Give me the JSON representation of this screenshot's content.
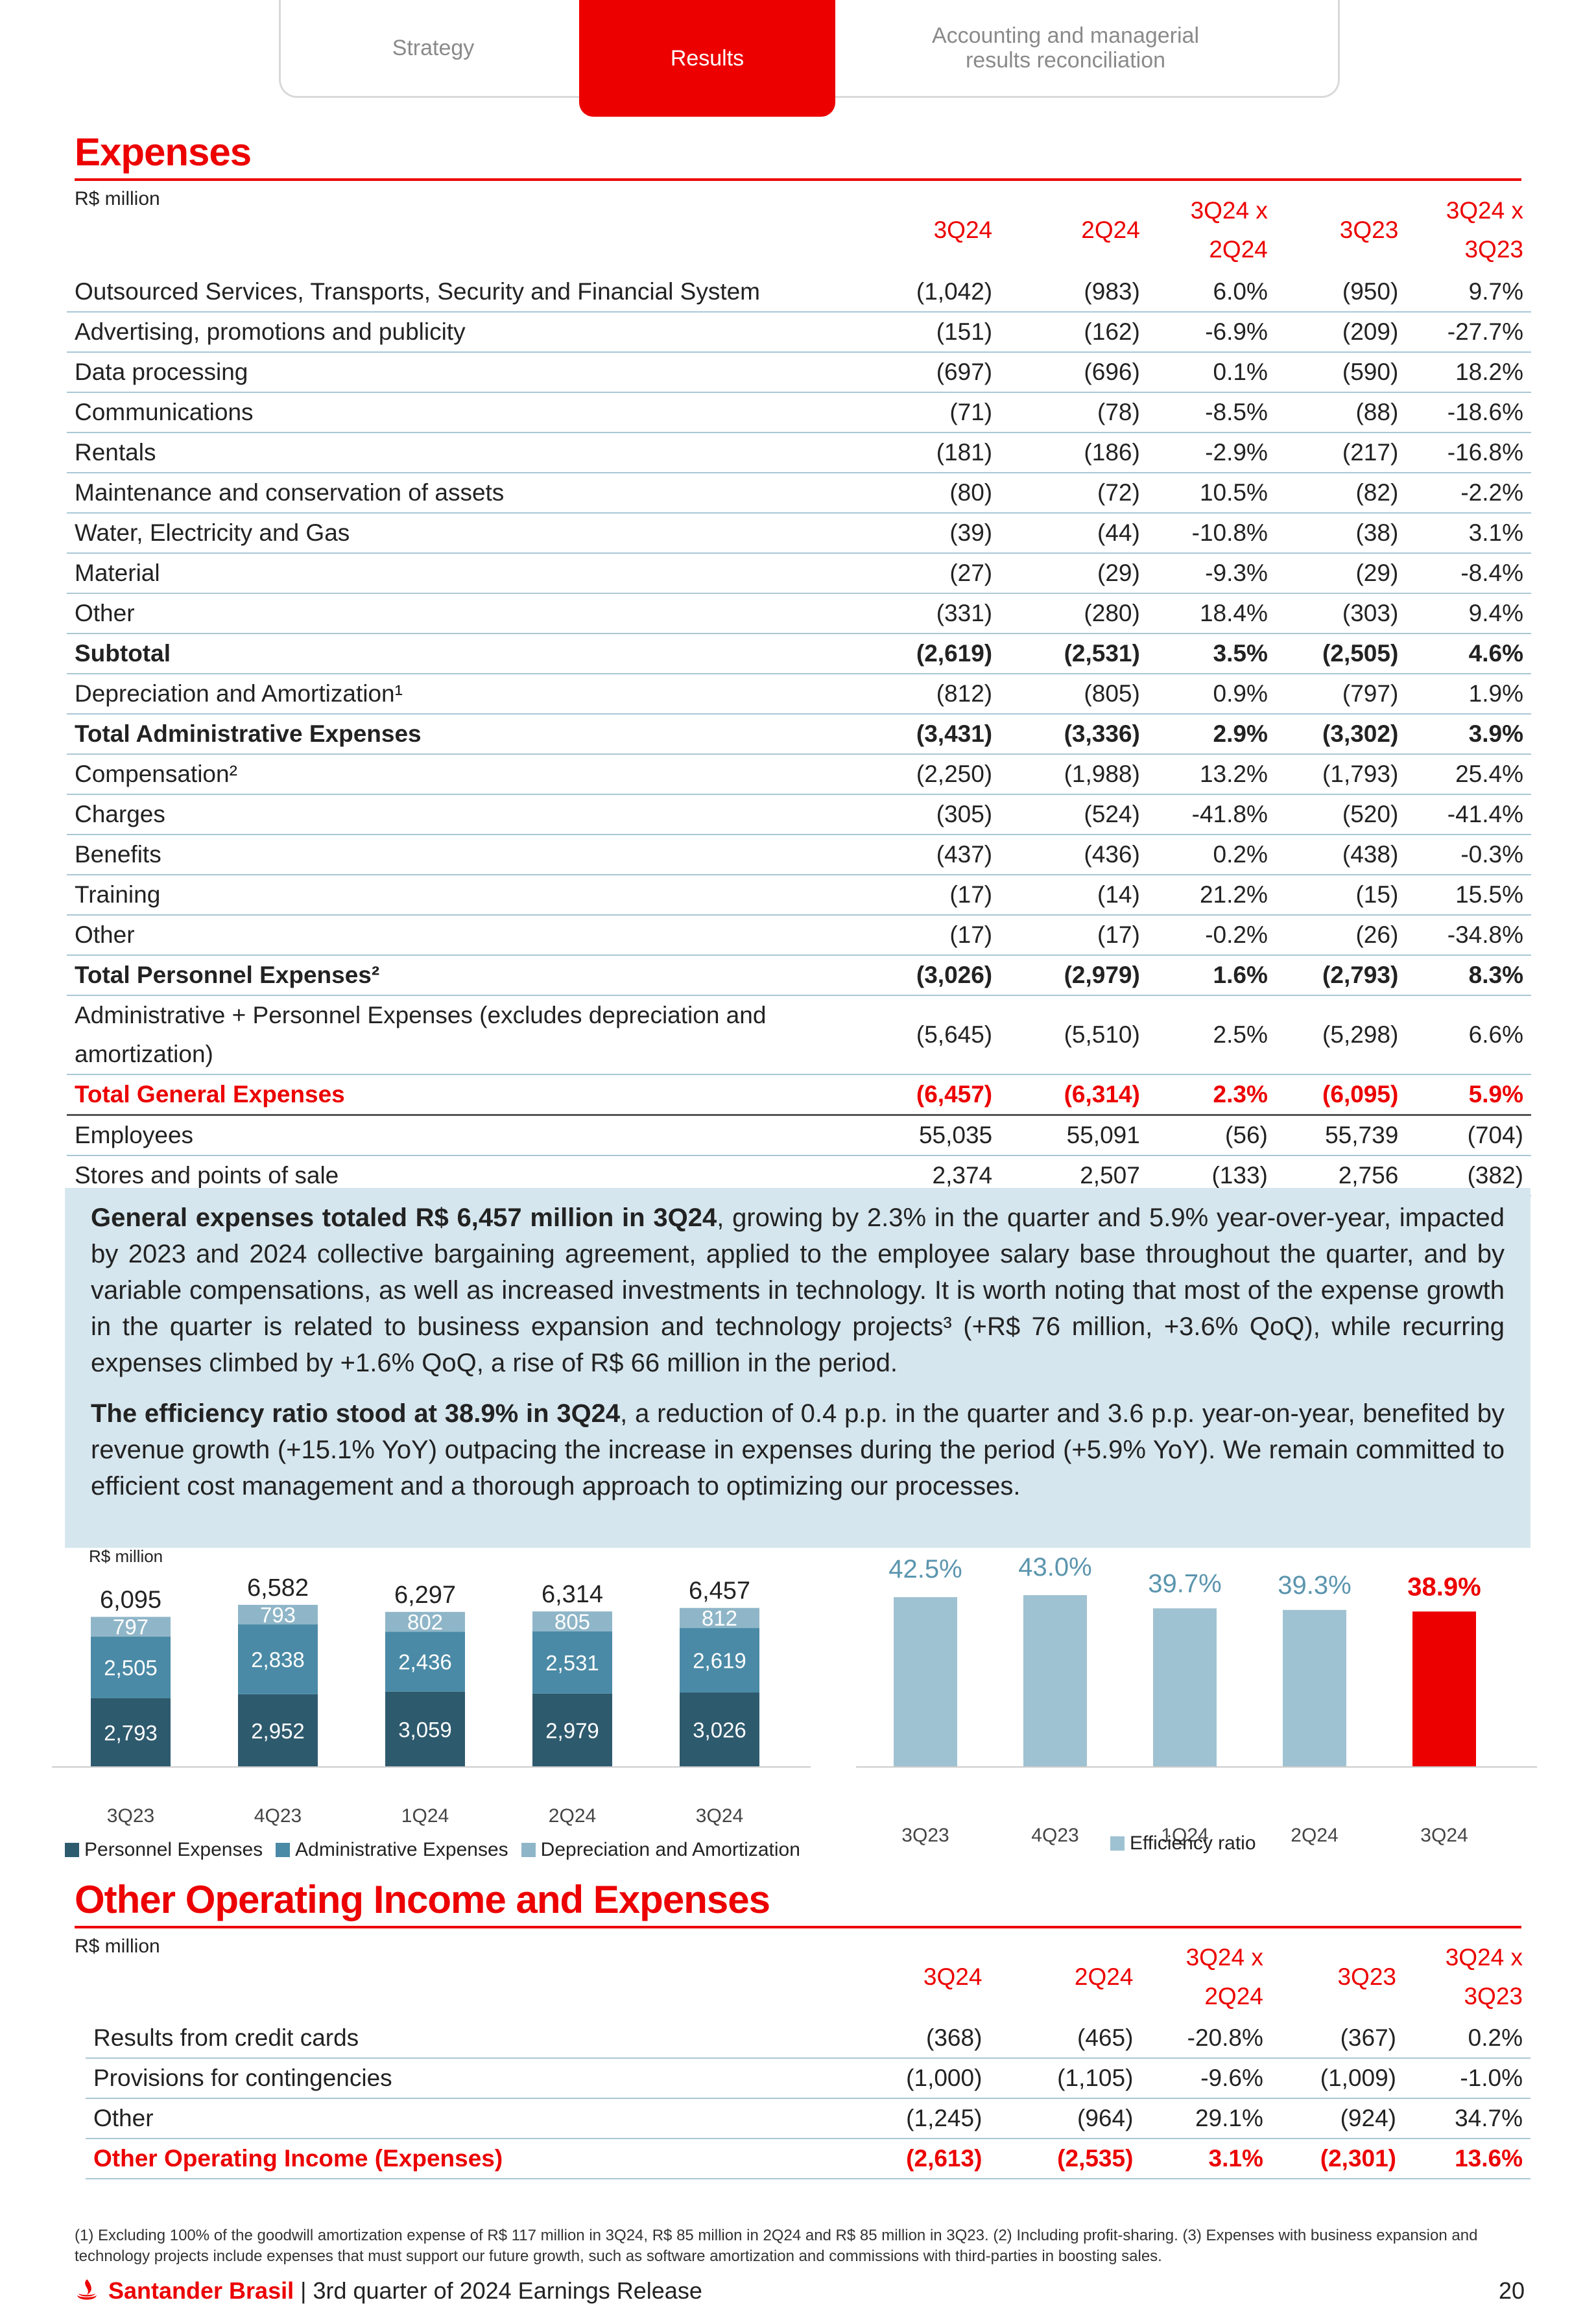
{
  "tabs": [
    {
      "label": "Strategy",
      "active": false
    },
    {
      "label": "Results",
      "active": true
    },
    {
      "label": "Accounting and managerial results reconciliation",
      "active": false
    }
  ],
  "expenses": {
    "title": "Expenses",
    "unit": "R$ million",
    "columns": [
      "3Q24",
      "2Q24",
      "3Q24 x 2Q24",
      "3Q23",
      "3Q24 x 3Q23"
    ],
    "rows": [
      {
        "label": "Outsourced Services, Transports, Security and Financial System",
        "values": [
          "(1,042)",
          "(983)",
          "6.0%",
          "(950)",
          "9.7%"
        ],
        "style": ""
      },
      {
        "label": "Advertising, promotions and publicity",
        "values": [
          "(151)",
          "(162)",
          "-6.9%",
          "(209)",
          "-27.7%"
        ],
        "style": ""
      },
      {
        "label": "Data processing",
        "values": [
          "(697)",
          "(696)",
          "0.1%",
          "(590)",
          "18.2%"
        ],
        "style": ""
      },
      {
        "label": "Communications",
        "values": [
          "(71)",
          "(78)",
          "-8.5%",
          "(88)",
          "-18.6%"
        ],
        "style": ""
      },
      {
        "label": "Rentals",
        "values": [
          "(181)",
          "(186)",
          "-2.9%",
          "(217)",
          "-16.8%"
        ],
        "style": ""
      },
      {
        "label": "Maintenance and conservation of assets",
        "values": [
          "(80)",
          "(72)",
          "10.5%",
          "(82)",
          "-2.2%"
        ],
        "style": ""
      },
      {
        "label": "Water, Electricity and Gas",
        "values": [
          "(39)",
          "(44)",
          "-10.8%",
          "(38)",
          "3.1%"
        ],
        "style": ""
      },
      {
        "label": "Material",
        "values": [
          "(27)",
          "(29)",
          "-9.3%",
          "(29)",
          "-8.4%"
        ],
        "style": ""
      },
      {
        "label": "Other",
        "values": [
          "(331)",
          "(280)",
          "18.4%",
          "(303)",
          "9.4%"
        ],
        "style": ""
      },
      {
        "label": "Subtotal",
        "values": [
          "(2,619)",
          "(2,531)",
          "3.5%",
          "(2,505)",
          "4.6%"
        ],
        "style": "bold"
      },
      {
        "label": "Depreciation and Amortization¹",
        "values": [
          "(812)",
          "(805)",
          "0.9%",
          "(797)",
          "1.9%"
        ],
        "style": ""
      },
      {
        "label": "Total Administrative Expenses",
        "values": [
          "(3,431)",
          "(3,336)",
          "2.9%",
          "(3,302)",
          "3.9%"
        ],
        "style": "bold"
      },
      {
        "label": "Compensation²",
        "values": [
          "(2,250)",
          "(1,988)",
          "13.2%",
          "(1,793)",
          "25.4%"
        ],
        "style": ""
      },
      {
        "label": "Charges",
        "values": [
          "(305)",
          "(524)",
          "-41.8%",
          "(520)",
          "-41.4%"
        ],
        "style": ""
      },
      {
        "label": "Benefits",
        "values": [
          "(437)",
          "(436)",
          "0.2%",
          "(438)",
          "-0.3%"
        ],
        "style": ""
      },
      {
        "label": "Training",
        "values": [
          "(17)",
          "(14)",
          "21.2%",
          "(15)",
          "15.5%"
        ],
        "style": ""
      },
      {
        "label": "Other",
        "values": [
          "(17)",
          "(17)",
          "-0.2%",
          "(26)",
          "-34.8%"
        ],
        "style": ""
      },
      {
        "label": "Total Personnel Expenses²",
        "values": [
          "(3,026)",
          "(2,979)",
          "1.6%",
          "(2,793)",
          "8.3%"
        ],
        "style": "bold"
      },
      {
        "label": "Administrative + Personnel Expenses (excludes depreciation and amortization)",
        "values": [
          "(5,645)",
          "(5,510)",
          "2.5%",
          "(5,298)",
          "6.6%"
        ],
        "style": "tall"
      },
      {
        "label": "Total General Expenses",
        "values": [
          "(6,457)",
          "(6,314)",
          "2.3%",
          "(6,095)",
          "5.9%"
        ],
        "style": "red"
      },
      {
        "label": "Employees",
        "values": [
          "55,035",
          "55,091",
          "(56)",
          "55,739",
          "(704)"
        ],
        "style": "topline"
      },
      {
        "label": "Stores and points of sale",
        "values": [
          "2,374",
          "2,507",
          "(133)",
          "2,756",
          "(382)"
        ],
        "style": ""
      }
    ]
  },
  "commentary": {
    "p1_bold": "General expenses totaled R$ 6,457 million in 3Q24",
    "p1_text": ", growing by 2.3% in the quarter and 5.9% year-over-year, impacted by 2023 and 2024 collective bargaining agreement, applied to the employee salary base throughout the quarter, and by variable compensations, as well as increased investments in technology. It is worth noting that most of the expense growth in the quarter is related to business expansion and technology projects³ (+R$ 76 million, +3.6% QoQ), while recurring expenses climbed by +1.6% QoQ, a rise of R$ 66 million in the period.",
    "p2_bold": "The efficiency ratio stood at 38.9% in 3Q24",
    "p2_text": ", a reduction of 0.4 p.p. in the quarter and 3.6 p.p. year-on-year, benefited by revenue growth (+15.1% YoY) outpacing the increase in expenses during the period (+5.9% YoY). We remain committed to efficient cost management and a thorough approach to optimizing our processes."
  },
  "chart_data": [
    {
      "type": "bar",
      "stacked": true,
      "unit": "R$ million",
      "categories": [
        "3Q23",
        "4Q23",
        "1Q24",
        "2Q24",
        "3Q24"
      ],
      "series": [
        {
          "name": "Personnel Expenses",
          "values": [
            2793,
            2952,
            3059,
            2979,
            3026
          ],
          "color": "#2e5a6e"
        },
        {
          "name": "Administrative Expenses",
          "values": [
            2505,
            2838,
            2436,
            2531,
            2619
          ],
          "color": "#4a8aa6"
        },
        {
          "name": "Depreciation and Amortization",
          "values": [
            797,
            793,
            802,
            805,
            812
          ],
          "color": "#8fb6c8"
        }
      ],
      "series_labels": [
        [
          "2,793",
          "2,952",
          "3,059",
          "2,979",
          "3,026"
        ],
        [
          "2,505",
          "2,838",
          "2,436",
          "2,531",
          "2,619"
        ],
        [
          "797",
          "793",
          "802",
          "805",
          "812"
        ]
      ],
      "totals": [
        6095,
        6582,
        6297,
        6314,
        6457
      ],
      "total_labels": [
        "6,095",
        "6,582",
        "6,297",
        "6,314",
        "6,457"
      ],
      "legend_position": "bottom"
    },
    {
      "type": "bar",
      "categories": [
        "3Q23",
        "4Q23",
        "1Q24",
        "2Q24",
        "3Q24"
      ],
      "series": [
        {
          "name": "Efficiency ratio",
          "values": [
            42.5,
            43.0,
            39.7,
            39.3,
            38.9
          ],
          "color": "#9fc2d2"
        }
      ],
      "value_labels": [
        "42.5%",
        "43.0%",
        "39.7%",
        "39.3%",
        "38.9%"
      ],
      "highlight": {
        "index": 4,
        "color": "#ec0000"
      },
      "legend_position": "bottom"
    }
  ],
  "other_operating": {
    "title": "Other Operating Income and Expenses",
    "unit": "R$ million",
    "columns": [
      "3Q24",
      "2Q24",
      "3Q24 x 2Q24",
      "3Q23",
      "3Q24 x 3Q23"
    ],
    "rows": [
      {
        "label": "Results from credit cards",
        "values": [
          "(368)",
          "(465)",
          "-20.8%",
          "(367)",
          "0.2%"
        ],
        "style": ""
      },
      {
        "label": "Provisions for contingencies",
        "values": [
          "(1,000)",
          "(1,105)",
          "-9.6%",
          "(1,009)",
          "-1.0%"
        ],
        "style": ""
      },
      {
        "label": "Other",
        "values": [
          "(1,245)",
          "(964)",
          "29.1%",
          "(924)",
          "34.7%"
        ],
        "style": ""
      },
      {
        "label": "Other Operating Income (Expenses)",
        "values": [
          "(2,613)",
          "(2,535)",
          "3.1%",
          "(2,301)",
          "13.6%"
        ],
        "style": "red"
      }
    ]
  },
  "footnote": "(1) Excluding 100% of the goodwill amortization expense of R$ 117 million in 3Q24, R$ 85 million in 2Q24 and R$ 85 million in 3Q23. (2) Including profit-sharing. (3) Expenses with business expansion and technology projects include expenses that must support our future growth, such as software amortization and commissions with third-parties in boosting sales.",
  "footer": {
    "brand": "Santander Brasil",
    "text": "| 3rd quarter of 2024 Earnings Release",
    "page": "20"
  },
  "colors": {
    "brand_red": "#ec0000",
    "row_rule": "#a9c7d6",
    "text_box": "#d6e6ee"
  }
}
